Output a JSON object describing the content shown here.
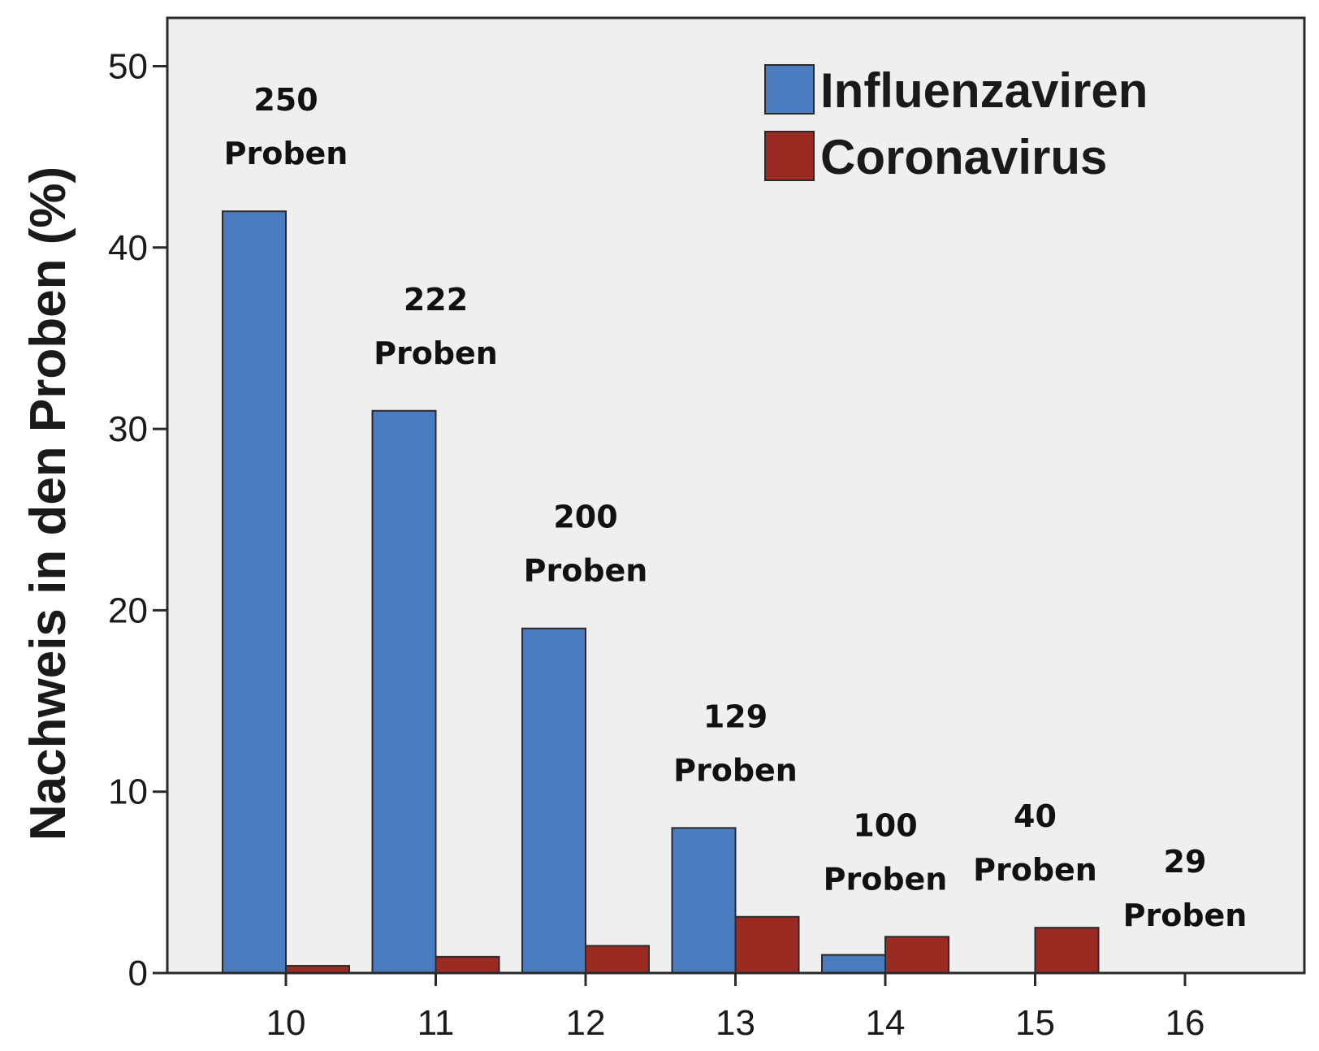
{
  "chart_data": {
    "type": "bar",
    "categories": [
      "10",
      "11",
      "12",
      "13",
      "14",
      "15",
      "16"
    ],
    "series": [
      {
        "name": "Influenzaviren",
        "color": "#4a7bbf",
        "values": [
          42,
          31,
          19,
          8,
          1,
          0,
          0
        ]
      },
      {
        "name": "Coronavirus",
        "color": "#9b2a22",
        "values": [
          0.4,
          0.9,
          1.5,
          3.1,
          2.0,
          2.5,
          0
        ]
      }
    ],
    "annotations": [
      {
        "number": "250",
        "label": "Proben"
      },
      {
        "number": "222",
        "label": "Proben"
      },
      {
        "number": "200",
        "label": "Proben"
      },
      {
        "number": "129",
        "label": "Proben"
      },
      {
        "number": "100",
        "label": "Proben"
      },
      {
        "number": "40",
        "label": "Proben"
      },
      {
        "number": "29",
        "label": "Proben"
      }
    ],
    "title": "",
    "xlabel": "",
    "ylabel": "Nachweis in den Proben (%)",
    "ylim": [
      0,
      52.5
    ],
    "yticks": [
      0,
      10,
      20,
      30,
      40,
      50
    ],
    "grid": false,
    "legend_position": "top-right",
    "plot_background": "#efefef"
  }
}
